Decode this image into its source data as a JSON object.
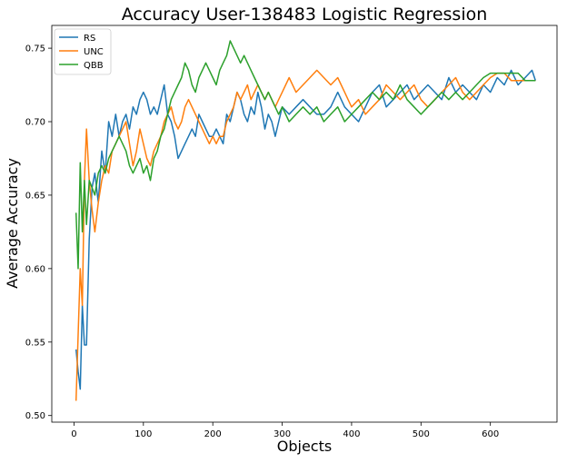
{
  "chart_data": {
    "type": "line",
    "title": "Accuracy User-138483 Logistic Regression",
    "xlabel": "Objects",
    "ylabel": "Average Accuracy",
    "xlim": [
      -32,
      696
    ],
    "ylim": [
      0.4955,
      0.7655
    ],
    "xticks": [
      0,
      100,
      200,
      300,
      400,
      500,
      600
    ],
    "yticks": [
      0.5,
      0.55,
      0.6,
      0.65,
      0.7,
      0.75
    ],
    "ytick_labels": [
      "0.50",
      "0.55",
      "0.60",
      "0.65",
      "0.70",
      "0.75"
    ],
    "grid": false,
    "legend_position": "top-left",
    "series": [
      {
        "name": "RS",
        "color": "#1f77b4",
        "x": [
          3,
          6,
          9,
          12,
          15,
          18,
          22,
          26,
          30,
          35,
          40,
          45,
          50,
          55,
          60,
          65,
          70,
          75,
          80,
          85,
          90,
          95,
          100,
          105,
          110,
          115,
          120,
          125,
          130,
          135,
          140,
          145,
          150,
          155,
          160,
          165,
          170,
          175,
          180,
          185,
          190,
          195,
          200,
          205,
          210,
          215,
          220,
          225,
          230,
          235,
          240,
          245,
          250,
          255,
          260,
          265,
          270,
          275,
          280,
          285,
          290,
          295,
          300,
          310,
          320,
          330,
          340,
          350,
          360,
          370,
          380,
          390,
          400,
          410,
          420,
          430,
          440,
          450,
          460,
          470,
          480,
          490,
          500,
          510,
          520,
          530,
          540,
          550,
          560,
          570,
          580,
          590,
          600,
          610,
          620,
          630,
          640,
          650,
          660,
          665
        ],
        "y": [
          0.545,
          0.53,
          0.518,
          0.575,
          0.548,
          0.548,
          0.62,
          0.655,
          0.665,
          0.645,
          0.68,
          0.665,
          0.7,
          0.69,
          0.705,
          0.69,
          0.7,
          0.705,
          0.695,
          0.71,
          0.705,
          0.715,
          0.72,
          0.715,
          0.705,
          0.71,
          0.705,
          0.715,
          0.725,
          0.705,
          0.7,
          0.69,
          0.675,
          0.68,
          0.685,
          0.69,
          0.695,
          0.69,
          0.705,
          0.7,
          0.695,
          0.69,
          0.69,
          0.695,
          0.69,
          0.685,
          0.705,
          0.7,
          0.71,
          0.72,
          0.715,
          0.705,
          0.7,
          0.71,
          0.705,
          0.72,
          0.71,
          0.695,
          0.705,
          0.7,
          0.69,
          0.7,
          0.71,
          0.705,
          0.71,
          0.715,
          0.71,
          0.705,
          0.705,
          0.71,
          0.72,
          0.71,
          0.705,
          0.7,
          0.71,
          0.72,
          0.725,
          0.71,
          0.715,
          0.72,
          0.725,
          0.715,
          0.72,
          0.725,
          0.72,
          0.715,
          0.73,
          0.72,
          0.725,
          0.72,
          0.715,
          0.725,
          0.72,
          0.73,
          0.725,
          0.735,
          0.725,
          0.73,
          0.735,
          0.728
        ]
      },
      {
        "name": "UNC",
        "color": "#ff7f0e",
        "x": [
          3,
          6,
          9,
          12,
          15,
          18,
          22,
          26,
          30,
          35,
          40,
          45,
          50,
          55,
          60,
          65,
          70,
          75,
          80,
          85,
          90,
          95,
          100,
          105,
          110,
          115,
          120,
          125,
          130,
          135,
          140,
          145,
          150,
          155,
          160,
          165,
          170,
          175,
          180,
          185,
          190,
          195,
          200,
          205,
          210,
          215,
          220,
          225,
          230,
          235,
          240,
          245,
          250,
          255,
          260,
          265,
          270,
          275,
          280,
          285,
          290,
          295,
          300,
          310,
          320,
          330,
          340,
          350,
          360,
          370,
          380,
          390,
          400,
          410,
          420,
          430,
          440,
          450,
          460,
          470,
          480,
          490,
          500,
          510,
          520,
          530,
          540,
          550,
          560,
          570,
          580,
          590,
          600,
          610,
          620,
          630,
          640,
          650,
          660,
          665
        ],
        "y": [
          0.51,
          0.555,
          0.6,
          0.575,
          0.66,
          0.695,
          0.66,
          0.64,
          0.625,
          0.645,
          0.66,
          0.67,
          0.665,
          0.68,
          0.685,
          0.69,
          0.695,
          0.7,
          0.685,
          0.67,
          0.68,
          0.695,
          0.685,
          0.675,
          0.67,
          0.68,
          0.685,
          0.69,
          0.7,
          0.705,
          0.71,
          0.7,
          0.695,
          0.7,
          0.71,
          0.715,
          0.71,
          0.705,
          0.7,
          0.695,
          0.69,
          0.685,
          0.69,
          0.685,
          0.69,
          0.69,
          0.7,
          0.705,
          0.71,
          0.72,
          0.715,
          0.72,
          0.725,
          0.715,
          0.72,
          0.725,
          0.72,
          0.715,
          0.72,
          0.715,
          0.71,
          0.715,
          0.72,
          0.73,
          0.72,
          0.725,
          0.73,
          0.735,
          0.73,
          0.725,
          0.73,
          0.72,
          0.71,
          0.715,
          0.705,
          0.71,
          0.715,
          0.725,
          0.72,
          0.715,
          0.72,
          0.725,
          0.715,
          0.71,
          0.715,
          0.72,
          0.725,
          0.73,
          0.72,
          0.715,
          0.72,
          0.725,
          0.73,
          0.733,
          0.733,
          0.728,
          0.728,
          0.728,
          0.728,
          0.728
        ]
      },
      {
        "name": "QBB",
        "color": "#2ca02c",
        "x": [
          3,
          6,
          9,
          12,
          15,
          18,
          22,
          26,
          30,
          35,
          40,
          45,
          50,
          55,
          60,
          65,
          70,
          75,
          80,
          85,
          90,
          95,
          100,
          105,
          110,
          115,
          120,
          125,
          130,
          135,
          140,
          145,
          150,
          155,
          160,
          165,
          170,
          175,
          180,
          185,
          190,
          195,
          200,
          205,
          210,
          215,
          220,
          225,
          230,
          235,
          240,
          245,
          250,
          255,
          260,
          265,
          270,
          275,
          280,
          285,
          290,
          295,
          300,
          310,
          320,
          330,
          340,
          350,
          360,
          370,
          380,
          390,
          400,
          410,
          420,
          430,
          440,
          450,
          460,
          470,
          480,
          490,
          500,
          510,
          520,
          530,
          540,
          550,
          560,
          570,
          580,
          590,
          600,
          610,
          620,
          630,
          640,
          650,
          660,
          665
        ],
        "y": [
          0.638,
          0.6,
          0.672,
          0.625,
          0.66,
          0.63,
          0.66,
          0.655,
          0.65,
          0.665,
          0.67,
          0.665,
          0.675,
          0.68,
          0.685,
          0.69,
          0.685,
          0.68,
          0.67,
          0.665,
          0.67,
          0.675,
          0.665,
          0.67,
          0.66,
          0.675,
          0.68,
          0.69,
          0.695,
          0.705,
          0.715,
          0.72,
          0.725,
          0.73,
          0.74,
          0.735,
          0.725,
          0.72,
          0.73,
          0.735,
          0.74,
          0.735,
          0.73,
          0.725,
          0.735,
          0.74,
          0.745,
          0.755,
          0.75,
          0.745,
          0.74,
          0.745,
          0.74,
          0.735,
          0.73,
          0.725,
          0.72,
          0.715,
          0.72,
          0.715,
          0.71,
          0.705,
          0.71,
          0.7,
          0.705,
          0.71,
          0.705,
          0.71,
          0.7,
          0.705,
          0.71,
          0.7,
          0.705,
          0.71,
          0.715,
          0.72,
          0.715,
          0.72,
          0.715,
          0.725,
          0.715,
          0.71,
          0.705,
          0.71,
          0.715,
          0.72,
          0.715,
          0.72,
          0.715,
          0.72,
          0.725,
          0.73,
          0.733,
          0.733,
          0.733,
          0.733,
          0.733,
          0.728,
          0.728,
          0.728
        ]
      }
    ]
  }
}
